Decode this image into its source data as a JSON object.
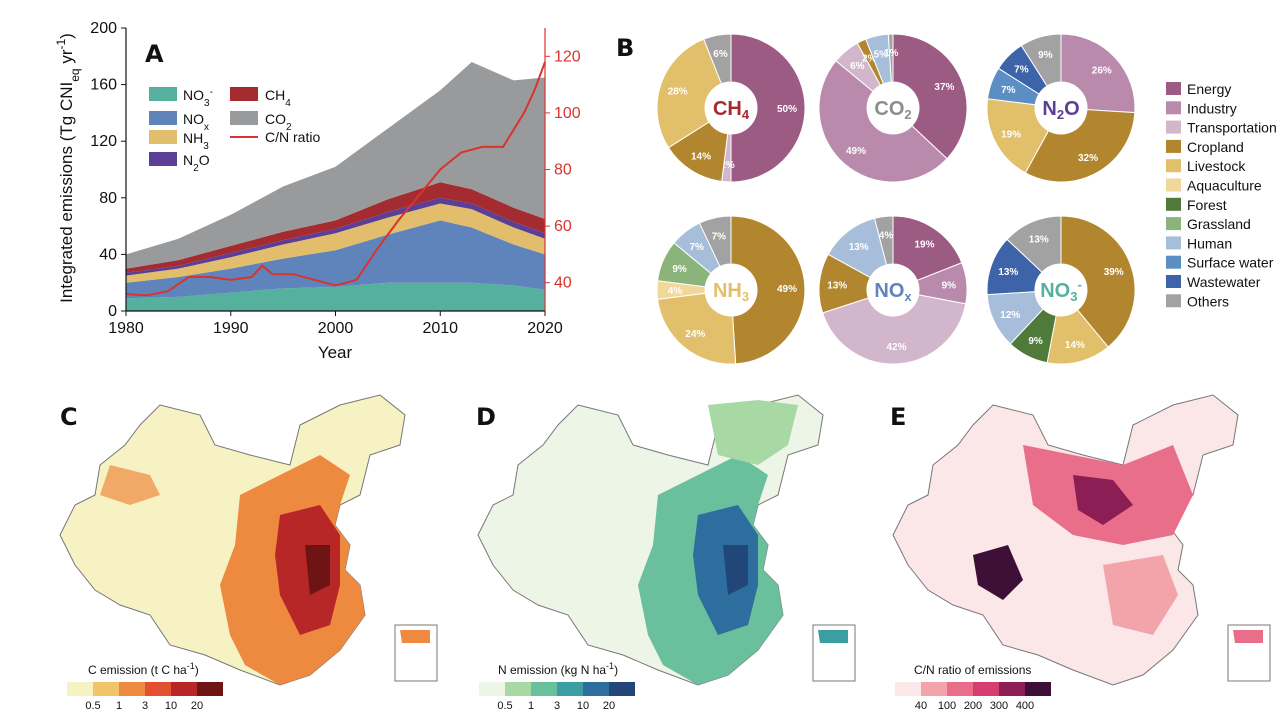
{
  "chart_data": [
    {
      "panel": "A",
      "type": "area",
      "xlabel": "Year",
      "ylabel": "Integrated emissions (Tg CNIeq yr-1)",
      "xlim": [
        1980,
        2020
      ],
      "ylim": [
        0,
        200
      ],
      "y2lim": [
        30,
        130
      ],
      "xticks": [
        "1980",
        "1990",
        "2000",
        "2010",
        "2020"
      ],
      "yticks": [
        "0",
        "40",
        "80",
        "120",
        "160",
        "200"
      ],
      "y2ticks": [
        "40",
        "60",
        "80",
        "100",
        "120"
      ],
      "x": [
        1980,
        1985,
        1990,
        1995,
        2000,
        2005,
        2010,
        2013,
        2017,
        2020
      ],
      "series": [
        {
          "name": "NO3-",
          "color": "#55B09E",
          "values": [
            9,
            10,
            13,
            16,
            17,
            20,
            20,
            20,
            18,
            15
          ]
        },
        {
          "name": "NOx",
          "color": "#5F84BC",
          "values": [
            11,
            14,
            17,
            21,
            26,
            34,
            44,
            39,
            29,
            25
          ]
        },
        {
          "name": "NH3",
          "color": "#E2BE6C",
          "values": [
            5,
            6,
            8,
            10,
            12,
            12,
            12,
            13,
            12,
            11
          ]
        },
        {
          "name": "N2O",
          "color": "#5B3F97",
          "values": [
            2,
            2,
            3,
            3,
            3,
            4,
            4,
            4,
            4,
            4
          ]
        },
        {
          "name": "CH4",
          "color": "#A42B2F",
          "values": [
            3,
            4,
            5,
            6,
            6,
            9,
            11,
            10,
            10,
            10
          ]
        },
        {
          "name": "CO2",
          "color": "#989A9C",
          "values": [
            10,
            15,
            22,
            32,
            38,
            50,
            65,
            90,
            90,
            100
          ]
        }
      ],
      "ratio_series": {
        "name": "C/N ratio",
        "color": "#D8342E",
        "x": [
          1980,
          1982,
          1984,
          1986,
          1988,
          1990,
          1992,
          1993,
          1994,
          1996,
          1998,
          2000,
          2002,
          2004,
          2006,
          2008,
          2010,
          2012,
          2014,
          2016,
          2018,
          2019,
          2020
        ],
        "values": [
          36,
          35.5,
          37,
          42,
          42,
          41,
          42,
          46,
          43,
          43,
          41,
          39,
          41,
          52,
          62,
          71,
          80,
          86,
          88,
          88,
          100,
          108,
          118
        ]
      },
      "legend": [
        "NO3-",
        "NOx",
        "NH3",
        "N2O",
        "CH4",
        "CO2",
        "C/N ratio"
      ]
    },
    {
      "panel": "B",
      "type": "pie",
      "legend": [
        {
          "name": "Energy",
          "color": "#9C5B82"
        },
        {
          "name": "Industry",
          "color": "#B98AAC"
        },
        {
          "name": "Transportation",
          "color": "#D2B6CC"
        },
        {
          "name": "Cropland",
          "color": "#B1862E"
        },
        {
          "name": "Livestock",
          "color": "#E2BF6A"
        },
        {
          "name": "Aquaculture",
          "color": "#F2D79B"
        },
        {
          "name": "Forest",
          "color": "#4F7A3A"
        },
        {
          "name": "Grassland",
          "color": "#8AB47A"
        },
        {
          "name": "Human",
          "color": "#A7BEDB"
        },
        {
          "name": "Surface water",
          "color": "#5B8FC4"
        },
        {
          "name": "Wastewater",
          "color": "#3D63A8"
        },
        {
          "name": "Others",
          "color": "#A2A2A2"
        }
      ],
      "donuts": [
        {
          "name": "CH4",
          "label_main": "CH",
          "label_sub": "4",
          "label_color": "#A42B2F",
          "slices": [
            {
              "source": "Energy",
              "value": 50,
              "label": "50%"
            },
            {
              "source": "Transportation",
              "value": 2,
              "label": "2%"
            },
            {
              "source": "Cropland",
              "value": 14,
              "label": "14%"
            },
            {
              "source": "Livestock",
              "value": 28,
              "label": "28%"
            },
            {
              "source": "Others",
              "value": 6,
              "label": "6%"
            }
          ]
        },
        {
          "name": "CO2",
          "label_main": "CO",
          "label_sub": "2",
          "label_color": "#8E8E8E",
          "slices": [
            {
              "source": "Energy",
              "value": 37,
              "label": "37%"
            },
            {
              "source": "Industry",
              "value": 49,
              "label": "49%"
            },
            {
              "source": "Transportation",
              "value": 6,
              "label": "6%"
            },
            {
              "source": "Cropland",
              "value": 2,
              "label": "2%"
            },
            {
              "source": "Human",
              "value": 5,
              "label": "5%"
            },
            {
              "source": "Others",
              "value": 1,
              "label": "1%"
            }
          ]
        },
        {
          "name": "N2O",
          "label_main": "N",
          "label_sub": "2",
          "label_tail": "O",
          "label_color": "#5B3F97",
          "slices": [
            {
              "source": "Industry",
              "value": 26,
              "label": "26%"
            },
            {
              "source": "Cropland",
              "value": 32,
              "label": "32%"
            },
            {
              "source": "Livestock",
              "value": 19,
              "label": "19%"
            },
            {
              "source": "Surface water",
              "value": 7,
              "label": "7%"
            },
            {
              "source": "Wastewater",
              "value": 7,
              "label": "7%"
            },
            {
              "source": "Others",
              "value": 9,
              "label": "9%"
            }
          ]
        },
        {
          "name": "NH3",
          "label_main": "NH",
          "label_sub": "3",
          "label_color": "#E2BF6A",
          "slices": [
            {
              "source": "Cropland",
              "value": 49,
              "label": "49%"
            },
            {
              "source": "Livestock",
              "value": 24,
              "label": "24%"
            },
            {
              "source": "Aquaculture",
              "value": 4,
              "label": "4%"
            },
            {
              "source": "Grassland",
              "value": 9,
              "label": "9%"
            },
            {
              "source": "Human",
              "value": 7,
              "label": "7%"
            },
            {
              "source": "Others",
              "value": 7,
              "label": "7%"
            }
          ]
        },
        {
          "name": "NOx",
          "label_main": "NO",
          "label_sub": "x",
          "label_color": "#5F84BC",
          "slices": [
            {
              "source": "Energy",
              "value": 19,
              "label": "19%"
            },
            {
              "source": "Industry",
              "value": 9,
              "label": "9%"
            },
            {
              "source": "Transportation",
              "value": 42,
              "label": "42%"
            },
            {
              "source": "Cropland",
              "value": 13,
              "label": "13%"
            },
            {
              "source": "Human",
              "value": 13,
              "label": "13%"
            },
            {
              "source": "Others",
              "value": 4,
              "label": "4%"
            }
          ]
        },
        {
          "name": "NO3-",
          "label_main": "NO",
          "label_sub": "3",
          "label_sup": "-",
          "label_color": "#55B09E",
          "slices": [
            {
              "source": "Cropland",
              "value": 39,
              "label": "39%"
            },
            {
              "source": "Livestock",
              "value": 14,
              "label": "14%"
            },
            {
              "source": "Forest",
              "value": 9,
              "label": "9%"
            },
            {
              "source": "Human",
              "value": 12,
              "label": "12%"
            },
            {
              "source": "Wastewater",
              "value": 13,
              "label": "13%"
            },
            {
              "source": "Others",
              "value": 13,
              "label": "13%"
            }
          ]
        }
      ]
    },
    {
      "panel": "C",
      "type": "heatmap",
      "caption": "C emission (t C ha-1)",
      "ticks": [
        "0.5",
        "1",
        "3",
        "10",
        "20"
      ],
      "colors": [
        "#F6F2C4",
        "#F2C46A",
        "#EE8A3F",
        "#E3502F",
        "#B82727",
        "#6E1414"
      ]
    },
    {
      "panel": "D",
      "type": "heatmap",
      "caption": "N emission (kg N ha-1)",
      "ticks": [
        "0.5",
        "1",
        "3",
        "10",
        "20"
      ],
      "colors": [
        "#EDF5E6",
        "#A8D8A3",
        "#6ABF9C",
        "#3A9EA2",
        "#2E6E9E",
        "#22457A"
      ]
    },
    {
      "panel": "E",
      "type": "heatmap",
      "caption": "C/N ratio of emissions",
      "ticks": [
        "40",
        "100",
        "200",
        "300",
        "400"
      ],
      "colors": [
        "#FBE6E8",
        "#F3A3AA",
        "#E86E8A",
        "#D73E70",
        "#8C1E55",
        "#3E1038"
      ]
    }
  ]
}
